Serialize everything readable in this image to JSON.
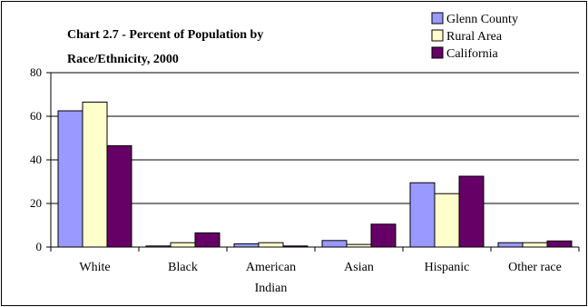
{
  "chart_data": {
    "type": "bar",
    "title_lines": [
      "Chart 2.7 - Percent of Population by",
      "Race/Ethnicity, 2000"
    ],
    "xlabel": "",
    "ylabel": "",
    "categories": [
      [
        "White"
      ],
      [
        "Black"
      ],
      [
        "American",
        "Indian"
      ],
      [
        "Asian"
      ],
      [
        "Hispanic"
      ],
      [
        "Other race"
      ]
    ],
    "ylim": [
      0,
      80
    ],
    "yticks": [
      0,
      20,
      40,
      60,
      80
    ],
    "grid": true,
    "legend_position": "top-right",
    "series": [
      {
        "name": "Glenn County",
        "color": "#9999ff",
        "values": [
          62.5,
          0.5,
          1.5,
          3.0,
          29.5,
          2.0
        ]
      },
      {
        "name": "Rural Area",
        "color": "#ffffcc",
        "values": [
          66.5,
          2.0,
          2.0,
          1.2,
          24.5,
          2.0
        ]
      },
      {
        "name": "California",
        "color": "#660066",
        "values": [
          46.5,
          6.5,
          0.5,
          10.5,
          32.5,
          2.8
        ]
      }
    ]
  }
}
